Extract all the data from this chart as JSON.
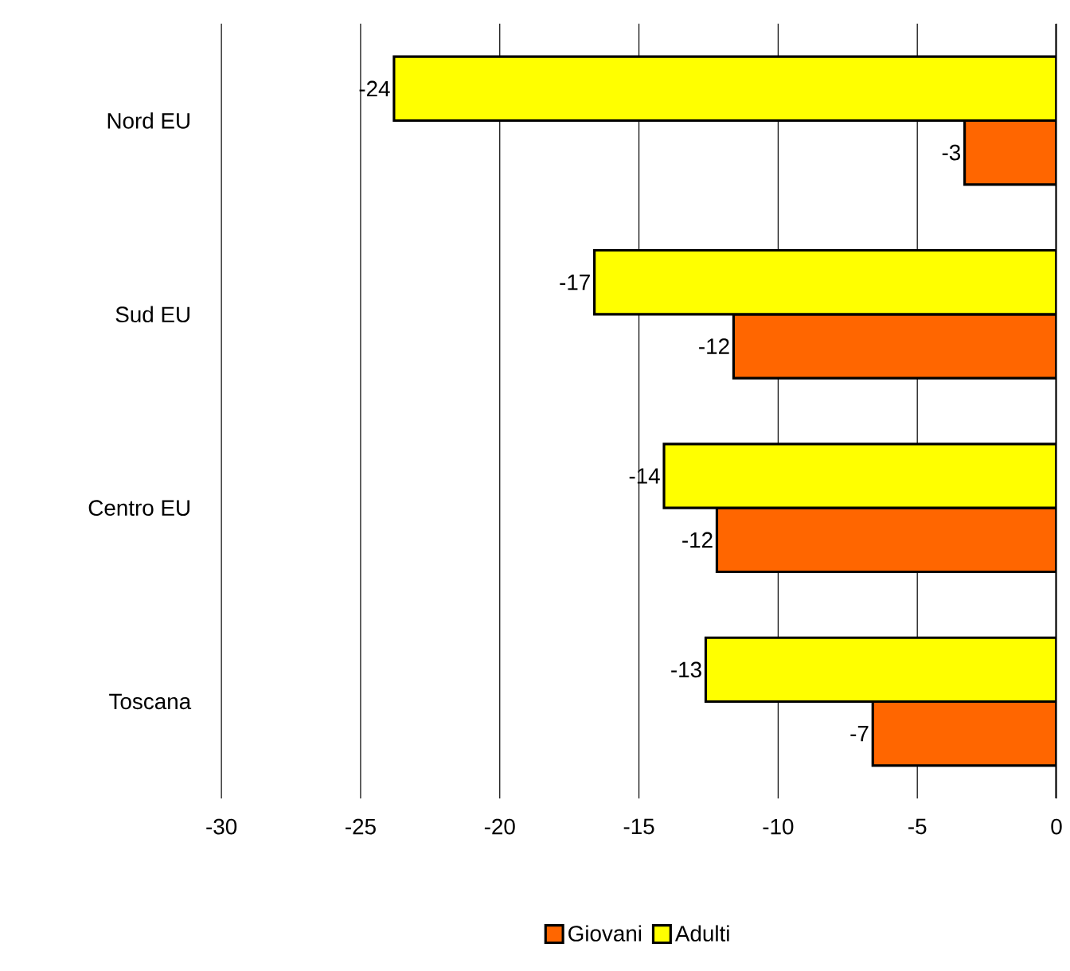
{
  "chart_data": {
    "type": "bar",
    "orientation": "horizontal",
    "categories": [
      "Nord EU",
      "Sud EU",
      "Centro EU",
      "Toscana"
    ],
    "series": [
      {
        "name": "Giovani",
        "color": "#ff6600",
        "values": [
          -3.3,
          -11.6,
          -12.2,
          -6.6
        ],
        "value_labels": [
          "-3",
          "-12",
          "-12",
          "-7"
        ]
      },
      {
        "name": "Adulti",
        "color": "#ffff00",
        "values": [
          -23.8,
          -16.6,
          -14.1,
          -12.6
        ],
        "value_labels": [
          "-24",
          "-17",
          "-14",
          "-13"
        ]
      }
    ],
    "xlim": [
      -30,
      0
    ],
    "xticks": [
      -30,
      -25,
      -20,
      -15,
      -10,
      -5,
      0
    ],
    "grid": "x",
    "legend": "bottom"
  }
}
